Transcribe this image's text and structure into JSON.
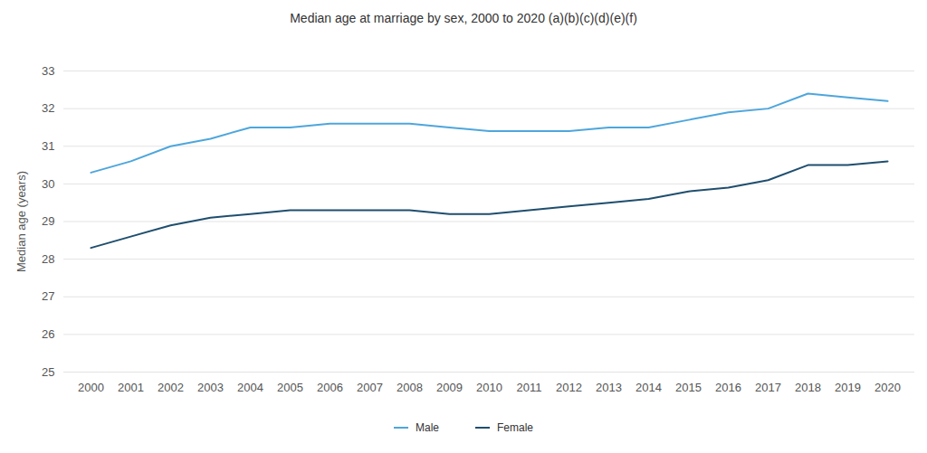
{
  "chart_data": {
    "type": "line",
    "title": "Median age at marriage by sex, 2000 to 2020 (a)(b)(c)(d)(e)(f)",
    "y_label": "Median age (years)",
    "categories": [
      "2000",
      "2001",
      "2002",
      "2003",
      "2004",
      "2005",
      "2006",
      "2007",
      "2008",
      "2009",
      "2010",
      "2011",
      "2012",
      "2013",
      "2014",
      "2015",
      "2016",
      "2017",
      "2018",
      "2019",
      "2020"
    ],
    "series": [
      {
        "name": "Male",
        "color": "#4ea6dc",
        "values": [
          30.3,
          30.6,
          31.0,
          31.2,
          31.5,
          31.5,
          31.6,
          31.6,
          31.6,
          31.5,
          31.4,
          31.4,
          31.4,
          31.5,
          31.5,
          31.7,
          31.9,
          32.0,
          32.4,
          32.3,
          32.2
        ]
      },
      {
        "name": "Female",
        "color": "#1f4e6e",
        "values": [
          28.3,
          28.6,
          28.9,
          29.1,
          29.2,
          29.3,
          29.3,
          29.3,
          29.3,
          29.2,
          29.2,
          29.3,
          29.4,
          29.5,
          29.6,
          29.8,
          29.9,
          30.1,
          30.5,
          30.5,
          30.6
        ]
      }
    ],
    "ylim": [
      25,
      33
    ],
    "yticks": [
      25,
      26,
      27,
      28,
      29,
      30,
      31,
      32,
      33
    ],
    "grid": true,
    "legend": "bottom"
  }
}
